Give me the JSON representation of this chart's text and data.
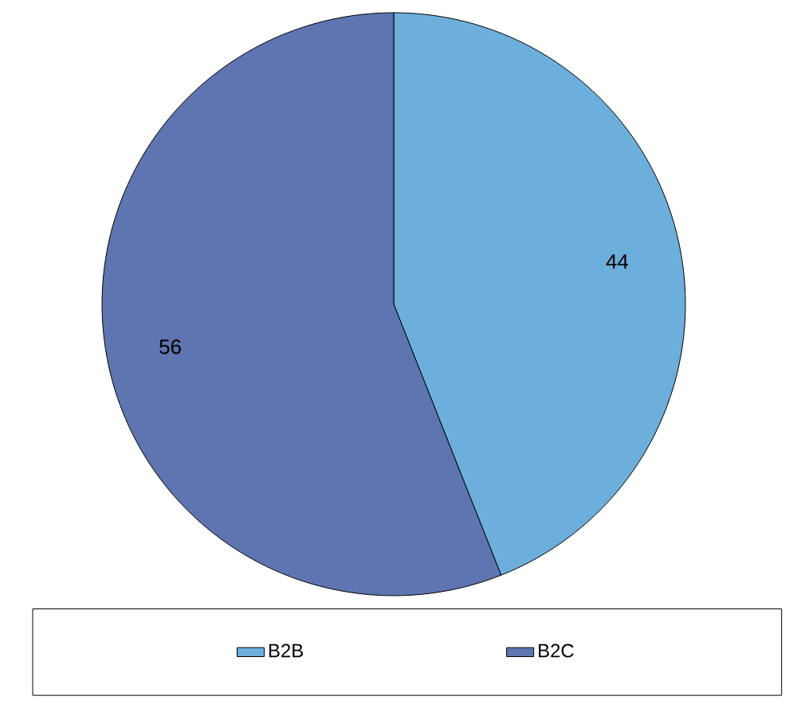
{
  "chart_data": {
    "type": "pie",
    "categories": [
      "B2B",
      "B2C"
    ],
    "values": [
      44,
      56
    ],
    "colors": [
      "#6CAFDC",
      "#5E75B1"
    ],
    "data_labels": true,
    "legend": "bottom"
  }
}
